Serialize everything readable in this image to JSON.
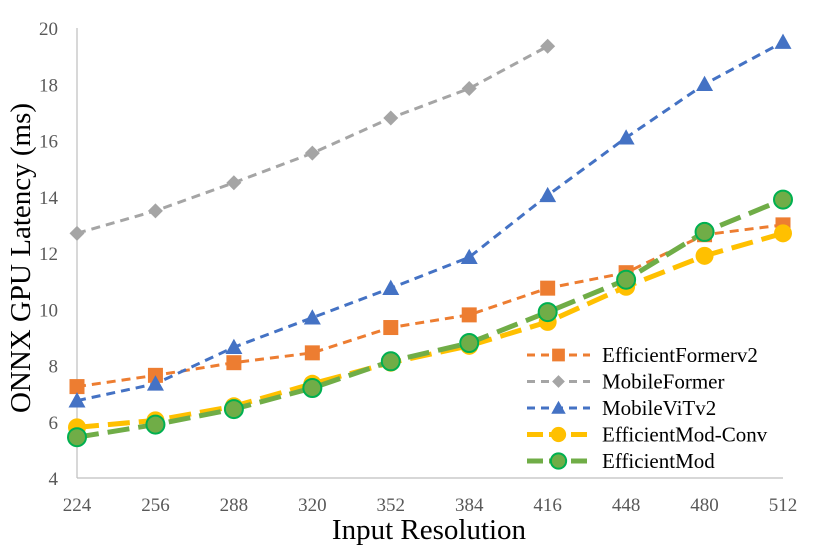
{
  "chart_data": {
    "type": "line",
    "title": "",
    "xlabel": "Input Resolution",
    "ylabel": "ONNX GPU Latency (ms)",
    "categories": [
      "224",
      "256",
      "288",
      "320",
      "352",
      "384",
      "416",
      "448",
      "480",
      "512"
    ],
    "y_ticks": [
      "4",
      "6",
      "8",
      "10",
      "12",
      "14",
      "16",
      "18",
      "20"
    ],
    "ylim": [
      4,
      20
    ],
    "grid": false,
    "legend_position": "bottom-right",
    "series": [
      {
        "name": "EfficientFormerv2",
        "color": "#ED7D31",
        "marker": "square",
        "dash": "short",
        "values": [
          7.25,
          7.65,
          8.1,
          8.45,
          9.35,
          9.8,
          10.75,
          11.3,
          12.65,
          13.0
        ]
      },
      {
        "name": "MobileFormer",
        "color": "#A5A5A5",
        "marker": "diamond",
        "dash": "short",
        "values": [
          12.7,
          13.5,
          14.5,
          15.55,
          16.8,
          17.85,
          19.35,
          null,
          null,
          null
        ]
      },
      {
        "name": "MobileViTv2",
        "color": "#4472C4",
        "marker": "triangle",
        "dash": "short",
        "values": [
          6.75,
          7.35,
          8.65,
          9.7,
          10.75,
          11.85,
          14.05,
          16.1,
          18.0,
          19.5
        ]
      },
      {
        "name": "EfficientMod-Conv",
        "color": "#FFC000",
        "marker": "circle",
        "dash": "long",
        "values": [
          5.8,
          6.05,
          6.55,
          7.35,
          8.1,
          8.7,
          9.55,
          10.8,
          11.9,
          12.7
        ]
      },
      {
        "name": "EfficientMod",
        "color": "#70AD47",
        "marker": "circle",
        "dash": "long",
        "values": [
          5.45,
          5.9,
          6.45,
          7.2,
          8.15,
          8.8,
          9.9,
          11.05,
          12.75,
          13.9
        ]
      }
    ]
  }
}
